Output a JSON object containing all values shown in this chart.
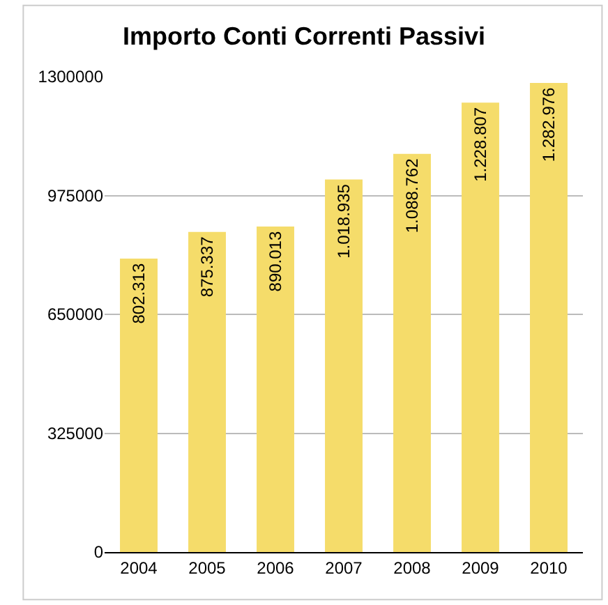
{
  "chart_data": {
    "type": "bar",
    "title": "Importo Conti Correnti Passivi",
    "categories": [
      "2004",
      "2005",
      "2006",
      "2007",
      "2008",
      "2009",
      "2010"
    ],
    "values": [
      802313,
      875337,
      890013,
      1018935,
      1088762,
      1228807,
      1282976
    ],
    "value_labels": [
      "802.313",
      "875.337",
      "890.013",
      "1.018.935",
      "1.088.762",
      "1.228.807",
      "1.282.976"
    ],
    "color": "#f5dc6a",
    "ylim": [
      0,
      1300000
    ],
    "yticks": [
      0,
      325000,
      650000,
      975000,
      1300000
    ],
    "grid": "y"
  }
}
